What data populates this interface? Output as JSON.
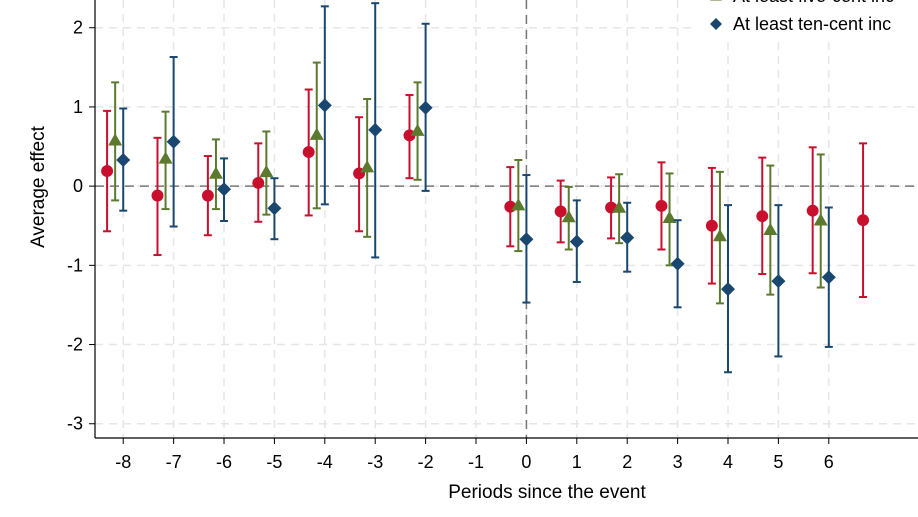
{
  "chart_data": {
    "type": "scatter",
    "subtype": "coefficient plot with confidence intervals",
    "xlabel": "Periods since the event",
    "ylabel": "Average effect",
    "xlim": [
      -8.56,
      7.77
    ],
    "ylim": [
      -3.18,
      2.35
    ],
    "xticks": [
      -8,
      -7,
      -6,
      -5,
      -4,
      -3,
      -2,
      -1,
      0,
      1,
      2,
      3,
      4,
      5,
      6
    ],
    "yticks": [
      2,
      1,
      0,
      -1,
      -2,
      -3
    ],
    "grid": true,
    "reference_lines": {
      "y": 0,
      "x": 0
    },
    "legend": {
      "placement": "top-right",
      "clipped": true
    },
    "series": [
      {
        "name": "",
        "color": "#c8102e",
        "marker": "circle",
        "x_offset": -0.32,
        "x": [
          -8,
          -7,
          -6,
          -5,
          -4,
          -3,
          -2,
          0,
          1,
          2,
          3,
          4,
          5,
          6,
          7
        ],
        "y": [
          0.19,
          -0.12,
          -0.12,
          0.04,
          0.43,
          0.16,
          0.64,
          -0.26,
          -0.32,
          -0.27,
          -0.25,
          -0.5,
          -0.38,
          -0.31,
          -0.43
        ],
        "ci_low": [
          -0.57,
          -0.87,
          -0.62,
          -0.45,
          -0.37,
          -0.57,
          0.1,
          -0.76,
          -0.71,
          -0.66,
          -0.8,
          -1.23,
          -1.11,
          -1.1,
          -1.4
        ],
        "ci_high": [
          0.95,
          0.61,
          0.38,
          0.54,
          1.22,
          0.87,
          1.15,
          0.24,
          0.07,
          0.11,
          0.3,
          0.23,
          0.36,
          0.49,
          0.54
        ]
      },
      {
        "name": "At least five-cent inc",
        "color": "#5b7a2e",
        "marker": "triangle",
        "x_offset": -0.16,
        "x": [
          -8,
          -7,
          -6,
          -5,
          -4,
          -3,
          -2,
          0,
          1,
          2,
          3,
          4,
          5,
          6
        ],
        "y": [
          0.58,
          0.35,
          0.16,
          0.18,
          0.65,
          0.24,
          0.7,
          -0.24,
          -0.39,
          -0.27,
          -0.4,
          -0.63,
          -0.55,
          -0.43
        ],
        "ci_low": [
          -0.18,
          -0.29,
          -0.29,
          -0.36,
          -0.28,
          -0.64,
          0.08,
          -0.82,
          -0.8,
          -0.72,
          -1.0,
          -1.48,
          -1.37,
          -1.28
        ],
        "ci_high": [
          1.31,
          0.94,
          0.59,
          0.69,
          1.56,
          1.1,
          1.31,
          0.33,
          -0.01,
          0.15,
          0.16,
          0.18,
          0.26,
          0.4
        ]
      },
      {
        "name": "At least ten-cent inc",
        "color": "#1a476f",
        "marker": "diamond",
        "x_offset": 0,
        "x": [
          -8,
          -7,
          -6,
          -5,
          -4,
          -3,
          -2,
          0,
          1,
          2,
          3,
          4,
          5,
          6
        ],
        "y": [
          0.33,
          0.56,
          -0.04,
          -0.28,
          1.02,
          0.71,
          0.99,
          -0.67,
          -0.7,
          -0.65,
          -0.98,
          -1.3,
          -1.2,
          -1.15
        ],
        "ci_low": [
          -0.31,
          -0.51,
          -0.44,
          -0.67,
          -0.23,
          -0.9,
          -0.06,
          -1.47,
          -1.21,
          -1.08,
          -1.53,
          -2.35,
          -2.15,
          -2.03
        ],
        "ci_high": [
          0.98,
          1.63,
          0.35,
          0.1,
          2.27,
          2.31,
          2.05,
          0.14,
          -0.18,
          -0.21,
          -0.43,
          -0.24,
          -0.24,
          -0.27
        ]
      }
    ]
  }
}
